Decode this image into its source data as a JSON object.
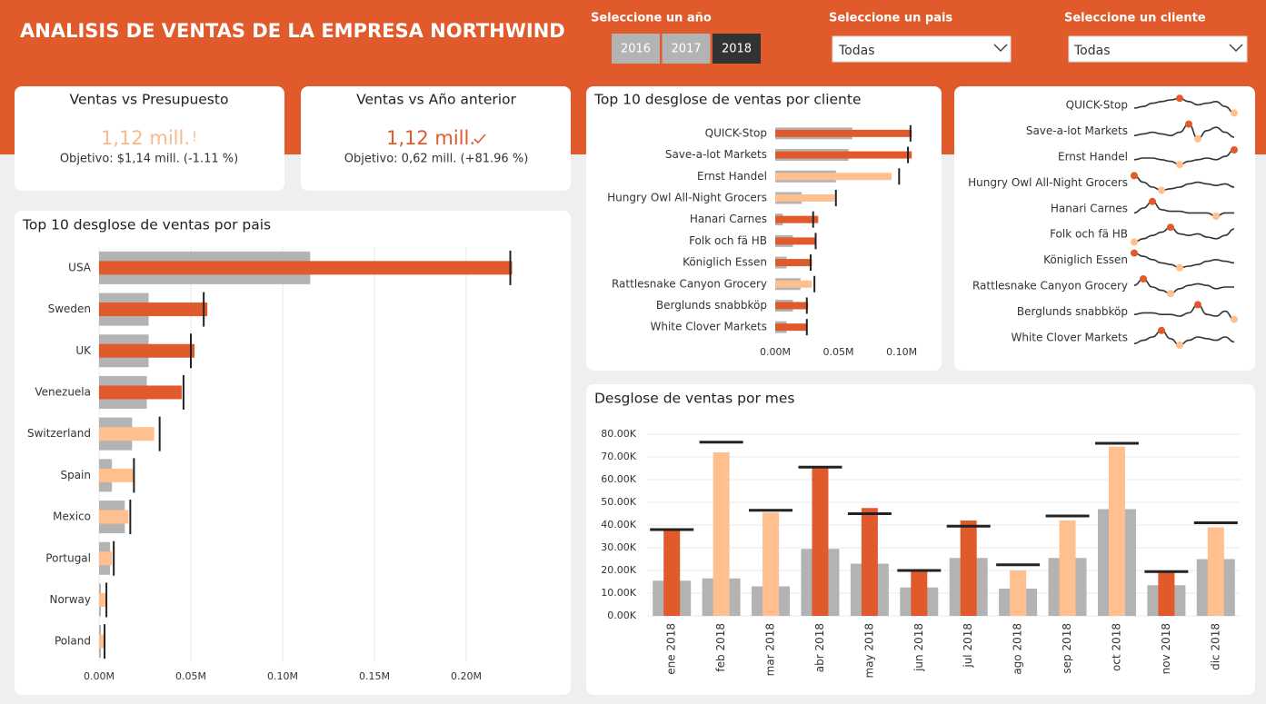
{
  "header": {
    "title": "ANALISIS DE VENTAS DE LA EMPRESA NORTHWIND"
  },
  "filters": {
    "year": {
      "label": "Seleccione un año",
      "options": [
        "2016",
        "2017",
        "2018"
      ],
      "selected": "2018"
    },
    "country": {
      "label": "Seleccione un pais",
      "value": "Todas"
    },
    "client": {
      "label": "Seleccione un cliente",
      "value": "Todas"
    }
  },
  "kpis": [
    {
      "title": "Ventas vs Presupuesto",
      "value": "1,12 mill.",
      "status": "!",
      "color": "#f9b98a",
      "target": "Objetivo: $1,14 mill. (-1.11 %)"
    },
    {
      "title": "Ventas vs Año anterior",
      "value": "1,12 mill.",
      "color": "#e05a2b",
      "target": "Objetivo: 0,62 mill. (+81.96 %)"
    }
  ],
  "chart_data": [
    {
      "type": "hbar",
      "title": "Top 10 desglose de ventas por pais",
      "categories": [
        "USA",
        "Sweden",
        "UK",
        "Venezuela",
        "Switzerland",
        "Spain",
        "Mexico",
        "Portugal",
        "Norway",
        "Poland"
      ],
      "series": [
        {
          "color": "#b3b3b3",
          "values": [
            0.115,
            0.027,
            0.027,
            0.026,
            0.018,
            0.007,
            0.014,
            0.006,
            0.001,
            0.001
          ]
        },
        {
          "colors": [
            "#e05a2b",
            "#e05a2b",
            "#e05a2b",
            "#e05a2b",
            "#ffbf8f",
            "#ffbf8f",
            "#ffbf8f",
            "#ffbf8f",
            "#ffbf8f",
            "#ffbf8f"
          ],
          "values": [
            0.225,
            0.059,
            0.052,
            0.045,
            0.03,
            0.019,
            0.016,
            0.007,
            0.004,
            0.003
          ]
        }
      ],
      "targets": [
        0.224,
        0.057,
        0.05,
        0.046,
        0.033,
        0.019,
        0.017,
        0.008,
        0.004,
        0.003
      ],
      "xlim": [
        0,
        0.23
      ],
      "xticks": [
        {
          "value": 0,
          "label": "0.00M"
        },
        {
          "value": 0.05,
          "label": "0.05M"
        },
        {
          "value": 0.1,
          "label": "0.10M"
        },
        {
          "value": 0.15,
          "label": "0.15M"
        },
        {
          "value": 0.2,
          "label": "0.20M"
        }
      ],
      "grid": true
    },
    {
      "type": "hbar",
      "title": "Top 10 desglose de ventas por cliente",
      "categories": [
        "QUICK-Stop",
        "Save-a-lot Markets",
        "Ernst Handel",
        "Hungry Owl All-Night Grocers",
        "Hanari Carnes",
        "Folk och fä HB",
        "Königlich Essen",
        "Rattlesnake Canyon Grocery",
        "Berglunds snabbköp",
        "White Clover Markets"
      ],
      "series": [
        {
          "color": "#b3b3b3",
          "values": [
            0.061,
            0.058,
            0.048,
            0.021,
            0.006,
            0.014,
            0.009,
            0.02,
            0.014,
            0.009
          ]
        },
        {
          "colors": [
            "#e05a2b",
            "#e05a2b",
            "#ffbf8f",
            "#ffbf8f",
            "#e05a2b",
            "#e05a2b",
            "#e05a2b",
            "#ffbf8f",
            "#e05a2b",
            "#e05a2b"
          ],
          "values": [
            0.108,
            0.108,
            0.092,
            0.047,
            0.034,
            0.032,
            0.029,
            0.029,
            0.026,
            0.025
          ]
        }
      ],
      "targets": [
        0.107,
        0.105,
        0.098,
        0.048,
        0.03,
        0.032,
        0.028,
        0.031,
        0.025,
        0.025
      ],
      "xlim": [
        0,
        0.11
      ],
      "xticks": [
        {
          "value": 0,
          "label": "0.00M"
        },
        {
          "value": 0.05,
          "label": "0.05M"
        },
        {
          "value": 0.1,
          "label": "0.10M"
        }
      ],
      "grid": false
    },
    {
      "type": "spark",
      "color": "#333333",
      "max_color": "#e05a2b",
      "min_color": "#ffbf8f",
      "ylim": [
        0,
        10
      ],
      "series": [
        {
          "name": "QUICK-Stop",
          "values": [
            4,
            5,
            7,
            8,
            9,
            10,
            8,
            6,
            7,
            8,
            5,
            1
          ]
        },
        {
          "name": "Save-a-lot Markets",
          "values": [
            3,
            4,
            5,
            4,
            3,
            5,
            10,
            1,
            6,
            8,
            5,
            2
          ]
        },
        {
          "name": "Ernst Handel",
          "values": [
            4,
            5,
            5,
            4,
            3,
            1,
            3,
            4,
            5,
            4,
            6,
            10
          ]
        },
        {
          "name": "Hungry Owl All-Night Grocers",
          "values": [
            10,
            6,
            3,
            1,
            2,
            3,
            5,
            6,
            5,
            4,
            5,
            3
          ]
        },
        {
          "name": "Hanari Carnes",
          "values": [
            3,
            6,
            10,
            5,
            4,
            4,
            3,
            3,
            3,
            1,
            3,
            3
          ]
        },
        {
          "name": "Folk och fä HB",
          "values": [
            1,
            3,
            5,
            7,
            10,
            6,
            5,
            6,
            4,
            3,
            5,
            9
          ]
        },
        {
          "name": "Königlich Essen",
          "values": [
            10,
            8,
            6,
            4,
            3,
            1,
            2,
            3,
            5,
            6,
            5,
            4
          ]
        },
        {
          "name": "Rattlesnake Canyon Grocery",
          "values": [
            6,
            10,
            5,
            3,
            1,
            4,
            6,
            7,
            6,
            4,
            5,
            5
          ]
        },
        {
          "name": "Berglunds snabbköp",
          "values": [
            4,
            5,
            5,
            4,
            4,
            3,
            5,
            10,
            4,
            3,
            6,
            1
          ]
        },
        {
          "name": "White Clover Markets",
          "values": [
            2,
            4,
            6,
            10,
            5,
            1,
            4,
            6,
            5,
            4,
            6,
            3
          ]
        }
      ]
    },
    {
      "type": "vbar",
      "title": "Desglose de ventas por mes",
      "categories": [
        "ene 2018",
        "feb 2018",
        "mar 2018",
        "abr 2018",
        "may 2018",
        "jun 2018",
        "jul 2018",
        "ago 2018",
        "sep 2018",
        "oct 2018",
        "nov 2018",
        "dic 2018"
      ],
      "series": [
        {
          "color": "#b3b3b3",
          "values": [
            15.5,
            16.5,
            13,
            29.5,
            23,
            12.5,
            25.5,
            12,
            25.5,
            47,
            13.5,
            25
          ]
        },
        {
          "colors": [
            "#e05a2b",
            "#ffbf8f",
            "#ffbf8f",
            "#e05a2b",
            "#e05a2b",
            "#e05a2b",
            "#e05a2b",
            "#ffbf8f",
            "#ffbf8f",
            "#ffbf8f",
            "#e05a2b",
            "#ffbf8f"
          ],
          "values": [
            38.5,
            72,
            45.5,
            66,
            47.5,
            20.5,
            42,
            20,
            42,
            74.5,
            20,
            39
          ]
        }
      ],
      "targets": [
        38,
        76.5,
        46.5,
        65.5,
        45,
        20,
        39.5,
        22.5,
        44,
        76,
        19.5,
        41
      ],
      "ylim": [
        0,
        80
      ],
      "yticks": [
        {
          "value": 0,
          "label": "0.00K"
        },
        {
          "value": 10,
          "label": "10.00K"
        },
        {
          "value": 20,
          "label": "20.00K"
        },
        {
          "value": 30,
          "label": "30.00K"
        },
        {
          "value": 40,
          "label": "40.00K"
        },
        {
          "value": 50,
          "label": "50.00K"
        },
        {
          "value": 60,
          "label": "60.00K"
        },
        {
          "value": 70,
          "label": "70.00K"
        },
        {
          "value": 80,
          "label": "80.00K"
        }
      ],
      "grid": true
    }
  ]
}
